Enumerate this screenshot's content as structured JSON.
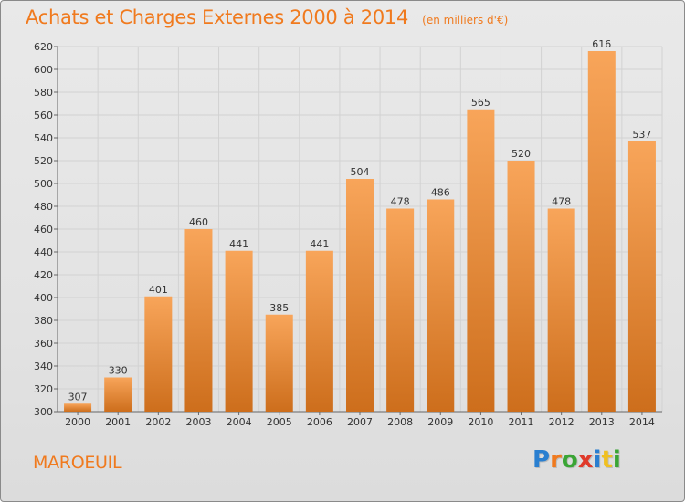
{
  "title": "Achats et Charges Externes 2000 à 2014",
  "subtitle": "(en milliers d'€)",
  "commune": "MAROEUIL",
  "logo": {
    "text": "Proxiti",
    "letter_colors": [
      "#2a7fd0",
      "#f07a1e",
      "#3aa535",
      "#e03a2a",
      "#2a7fd0",
      "#f0c020",
      "#3aa535"
    ]
  },
  "colors": {
    "text_accent": "#f07a1e",
    "bar_light": "#f8a55a",
    "bar_dark": "#cd6e1c"
  },
  "chart_data": {
    "type": "bar",
    "categories": [
      "2000",
      "2001",
      "2002",
      "2003",
      "2004",
      "2005",
      "2006",
      "2007",
      "2008",
      "2009",
      "2010",
      "2011",
      "2012",
      "2013",
      "2014"
    ],
    "values": [
      307,
      330,
      401,
      460,
      441,
      385,
      441,
      504,
      478,
      486,
      565,
      520,
      478,
      616,
      537
    ],
    "data_labels": [
      "307",
      "330",
      "401",
      "460",
      "441",
      "385",
      "441",
      "504",
      "478",
      "486",
      "565",
      "520",
      "478",
      "616",
      "537"
    ],
    "ylim": [
      300,
      620
    ],
    "yticks": [
      "300",
      "320",
      "340",
      "360",
      "380",
      "400",
      "420",
      "440",
      "460",
      "480",
      "500",
      "520",
      "540",
      "560",
      "580",
      "600",
      "620"
    ],
    "grid": true,
    "xlabel": "",
    "ylabel": ""
  }
}
